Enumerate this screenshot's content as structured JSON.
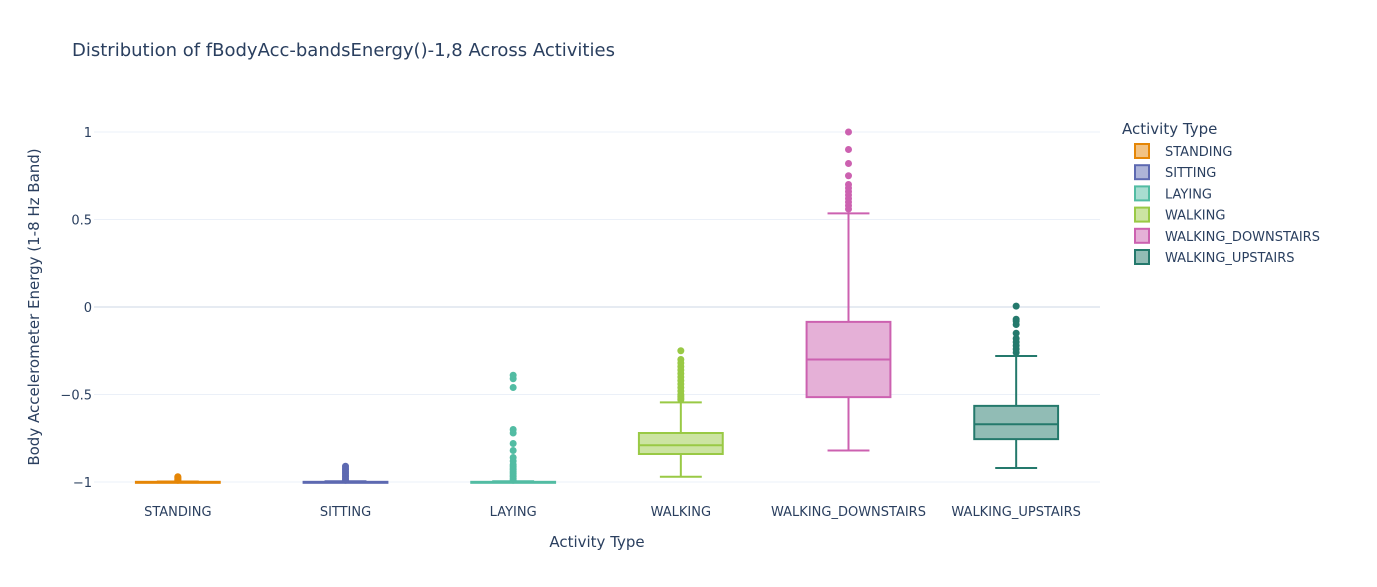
{
  "chart_data": {
    "type": "box",
    "title": "Distribution of fBodyAcc-bandsEnergy()-1,8 Across Activities",
    "xlabel": "Activity Type",
    "ylabel": "Body Accelerometer Energy (1-8 Hz Band)",
    "ylim": [
      -1.12,
      1.05
    ],
    "yticks": [
      {
        "value": 1,
        "label": "1"
      },
      {
        "value": 0.5,
        "label": "0.5"
      },
      {
        "value": 0,
        "label": "0"
      },
      {
        "value": -0.5,
        "label": "−0.5"
      },
      {
        "value": -1,
        "label": "−1"
      }
    ],
    "grid": true,
    "legend": {
      "title": "Activity Type",
      "placement": "right"
    },
    "categories": [
      "STANDING",
      "SITTING",
      "LAYING",
      "WALKING",
      "WALKING_DOWNSTAIRS",
      "WALKING_UPSTAIRS"
    ],
    "series": [
      {
        "name": "STANDING",
        "color": "#e58606",
        "fill": "#f2c283",
        "min": -1.0,
        "q1": -1.0,
        "median": -1.0,
        "q3": -0.999,
        "max": -0.997,
        "outliers": [
          -0.97,
          -0.975,
          -0.98,
          -0.985,
          -0.99
        ]
      },
      {
        "name": "SITTING",
        "color": "#5d69b1",
        "fill": "#aeb4d8",
        "min": -1.0,
        "q1": -1.0,
        "median": -1.0,
        "q3": -0.999,
        "max": -0.996,
        "outliers": [
          -0.91,
          -0.92,
          -0.93,
          -0.94,
          -0.95,
          -0.96,
          -0.97,
          -0.98,
          -0.99
        ]
      },
      {
        "name": "LAYING",
        "color": "#52bca3",
        "fill": "#a8ddd1",
        "min": -1.0,
        "q1": -1.0,
        "median": -1.0,
        "q3": -0.999,
        "max": -0.996,
        "outliers": [
          -0.39,
          -0.41,
          -0.46,
          -0.7,
          -0.72,
          -0.78,
          -0.82,
          -0.86,
          -0.88,
          -0.9,
          -0.91,
          -0.92,
          -0.93,
          -0.94,
          -0.95,
          -0.96,
          -0.97,
          -0.98,
          -0.99
        ]
      },
      {
        "name": "WALKING",
        "color": "#99c945",
        "fill": "#cce4a2",
        "min": -0.97,
        "q1": -0.84,
        "median": -0.79,
        "q3": -0.72,
        "max": -0.545,
        "outliers": [
          -0.25,
          -0.3,
          -0.32,
          -0.34,
          -0.36,
          -0.38,
          -0.4,
          -0.42,
          -0.44,
          -0.46,
          -0.48,
          -0.5,
          -0.51,
          -0.52,
          -0.53
        ]
      },
      {
        "name": "WALKING_DOWNSTAIRS",
        "color": "#cc61b0",
        "fill": "#e5b0d7",
        "min": -0.82,
        "q1": -0.515,
        "median": -0.3,
        "q3": -0.085,
        "max": 0.535,
        "outliers": [
          1.0,
          0.9,
          0.82,
          0.75,
          0.7,
          0.68,
          0.66,
          0.64,
          0.62,
          0.6,
          0.58,
          0.56
        ]
      },
      {
        "name": "WALKING_UPSTAIRS",
        "color": "#24796c",
        "fill": "#91bcb5",
        "min": -0.92,
        "q1": -0.755,
        "median": -0.67,
        "q3": -0.565,
        "max": -0.28,
        "outliers": [
          0.005,
          -0.07,
          -0.08,
          -0.1,
          -0.15,
          -0.18,
          -0.2,
          -0.22,
          -0.24,
          -0.26
        ]
      }
    ]
  }
}
